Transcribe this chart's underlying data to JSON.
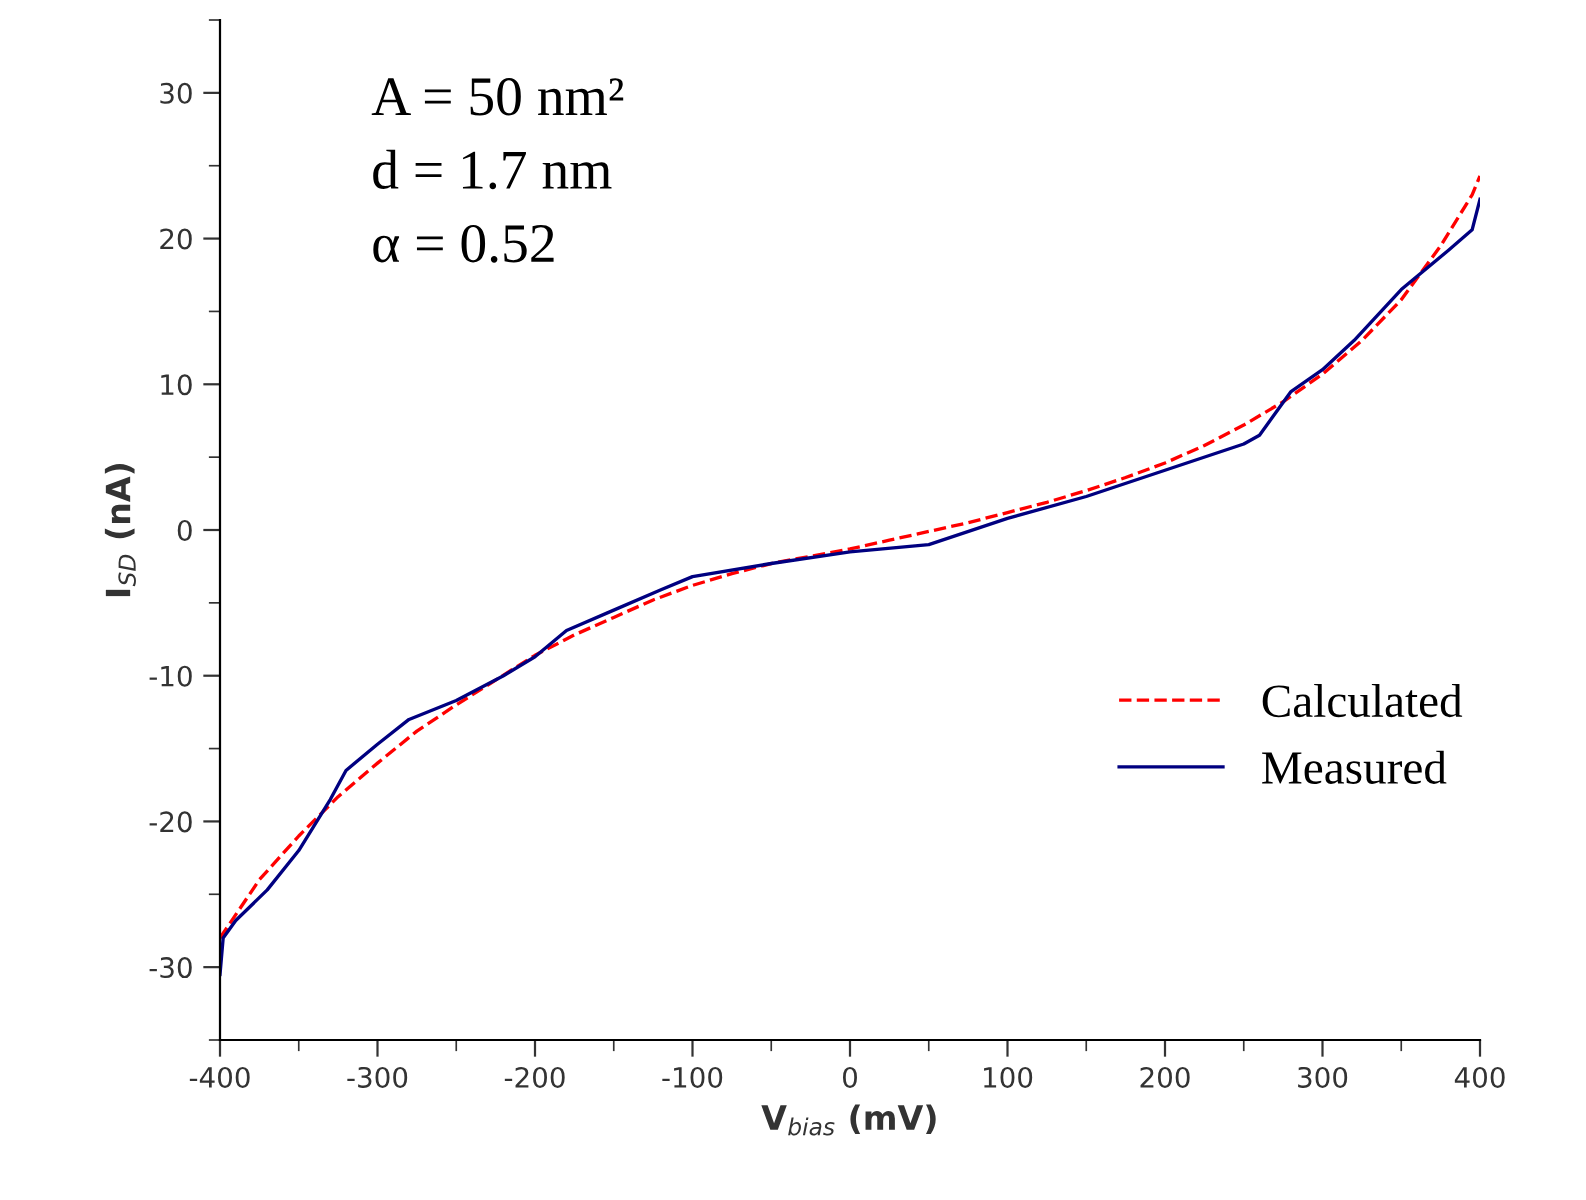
{
  "chart_data": {
    "type": "line",
    "xlabel": "V$_{bias}$ (mV)",
    "ylabel": "I$_{SD}$ (nA)",
    "xlim": [
      -400,
      400
    ],
    "xticks": [
      -400,
      -300,
      -200,
      -100,
      0,
      100,
      200,
      300,
      400
    ],
    "ylim": [
      -35,
      35
    ],
    "yticks": [
      -30,
      -20,
      -10,
      0,
      10,
      20,
      30
    ],
    "grid": false,
    "legend": "bottom right",
    "annotations": [
      "A = 50 nm²",
      "d = 1.7 nm",
      "α = 0.52"
    ],
    "series": [
      {
        "name": "Calculated",
        "color": "#ff0000",
        "line_style": "dashed",
        "x": [
          -400,
          -375,
          -350,
          -325,
          -300,
          -275,
          -250,
          -225,
          -200,
          -175,
          -150,
          -125,
          -100,
          -75,
          -50,
          -25,
          0,
          25,
          50,
          75,
          100,
          125,
          150,
          175,
          200,
          225,
          250,
          275,
          300,
          325,
          350,
          375,
          395,
          400
        ],
        "values": [
          -28,
          -24,
          -21,
          -18.3,
          -16,
          -13.8,
          -12,
          -10.3,
          -8.6,
          -7.2,
          -6,
          -4.8,
          -3.8,
          -3,
          -2.3,
          -1.8,
          -1.3,
          -0.7,
          -0.1,
          0.5,
          1.2,
          1.9,
          2.7,
          3.6,
          4.6,
          5.8,
          7.2,
          8.8,
          10.7,
          13,
          15.8,
          19.5,
          23,
          24.3
        ]
      },
      {
        "name": "Measured",
        "color": "#000080",
        "line_style": "solid",
        "x": [
          -400,
          -398,
          -390,
          -370,
          -350,
          -330,
          -320,
          -300,
          -280,
          -250,
          -220,
          -200,
          -180,
          -150,
          -120,
          -100,
          -50,
          0,
          50,
          100,
          150,
          200,
          250,
          260,
          280,
          300,
          320,
          350,
          380,
          395,
          400
        ],
        "values": [
          -30.5,
          -28,
          -26.8,
          -24.7,
          -22,
          -18.5,
          -16.5,
          -14.7,
          -13,
          -11.7,
          -10,
          -8.7,
          -6.9,
          -5.5,
          -4.1,
          -3.2,
          -2.3,
          -1.5,
          -1,
          0.8,
          2.3,
          4.1,
          5.9,
          6.5,
          9.5,
          11,
          13,
          16.5,
          19.2,
          20.6,
          22.7
        ]
      }
    ]
  }
}
